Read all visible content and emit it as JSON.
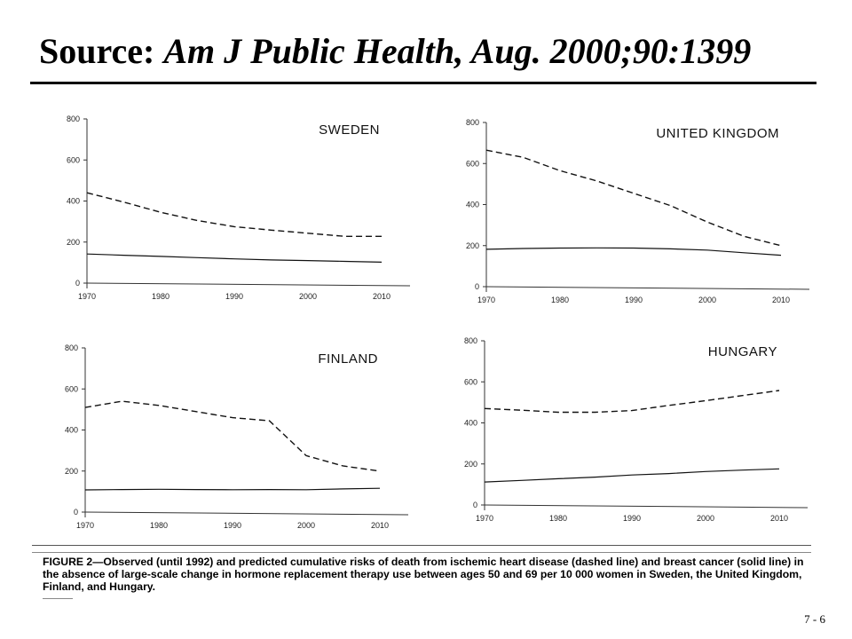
{
  "slide": {
    "title_prefix": "Source:",
    "title_citation": "Am J Public Health, Aug. 2000;90:1399",
    "caption_label": "FIGURE 2",
    "caption_text": "—Observed (until 1992) and predicted cumulative risks of death from ischemic heart disease (dashed line) and breast cancer (solid line) in the absence of large-scale change in hormone replacement therapy use between ages 50 and 69 per 10 000 women in Sweden, the United Kingdom, Finland, and Hungary.",
    "page_number": "7 - 6"
  },
  "chart_data": [
    {
      "type": "line",
      "title": "SWEDEN",
      "x": [
        1970,
        1975,
        1980,
        1985,
        1990,
        1995,
        2000,
        2005,
        2010
      ],
      "xticks": [
        "1970",
        "1980",
        "1990",
        "2000",
        "2010"
      ],
      "yticks": [
        "0",
        "200",
        "400",
        "600",
        "800"
      ],
      "xlim": [
        1970,
        2010
      ],
      "ylim": [
        0,
        800
      ],
      "series": [
        {
          "style": "dashed",
          "values": [
            440,
            395,
            345,
            305,
            275,
            258,
            243,
            228,
            228
          ]
        },
        {
          "style": "solid",
          "values": [
            142,
            136,
            130,
            124,
            118,
            113,
            110,
            106,
            102
          ]
        }
      ]
    },
    {
      "type": "line",
      "title": "UNITED KINGDOM",
      "x": [
        1970,
        1975,
        1980,
        1985,
        1990,
        1995,
        2000,
        2005,
        2010
      ],
      "xticks": [
        "1970",
        "1980",
        "1990",
        "2000",
        "2010"
      ],
      "yticks": [
        "0",
        "200",
        "400",
        "600",
        "800"
      ],
      "xlim": [
        1970,
        2010
      ],
      "ylim": [
        0,
        800
      ],
      "series": [
        {
          "style": "dashed",
          "values": [
            665,
            630,
            565,
            515,
            455,
            395,
            315,
            245,
            200
          ]
        },
        {
          "style": "solid",
          "values": [
            182,
            186,
            188,
            189,
            188,
            184,
            178,
            165,
            153
          ]
        }
      ]
    },
    {
      "type": "line",
      "title": "FINLAND",
      "x": [
        1970,
        1975,
        1980,
        1985,
        1990,
        1995,
        2000,
        2005,
        2010
      ],
      "xticks": [
        "1970",
        "1980",
        "1990",
        "2000",
        "2010"
      ],
      "yticks": [
        "0",
        "200",
        "400",
        "600",
        "800"
      ],
      "xlim": [
        1970,
        2010
      ],
      "ylim": [
        0,
        800
      ],
      "series": [
        {
          "style": "dashed",
          "values": [
            510,
            540,
            520,
            490,
            460,
            445,
            275,
            225,
            200
          ]
        },
        {
          "style": "solid",
          "values": [
            108,
            110,
            111,
            110,
            109,
            110,
            109,
            113,
            116
          ]
        }
      ]
    },
    {
      "type": "line",
      "title": "HUNGARY",
      "x": [
        1970,
        1975,
        1980,
        1985,
        1990,
        1995,
        2000,
        2005,
        2010
      ],
      "xticks": [
        "1970",
        "1980",
        "1990",
        "2000",
        "2010"
      ],
      "yticks": [
        "0",
        "200",
        "400",
        "600",
        "800"
      ],
      "xlim": [
        1970,
        2010
      ],
      "ylim": [
        0,
        800
      ],
      "series": [
        {
          "style": "dashed",
          "values": [
            470,
            462,
            452,
            452,
            460,
            485,
            508,
            533,
            558
          ]
        },
        {
          "style": "solid",
          "values": [
            112,
            120,
            128,
            136,
            146,
            153,
            163,
            170,
            176
          ]
        }
      ]
    }
  ]
}
